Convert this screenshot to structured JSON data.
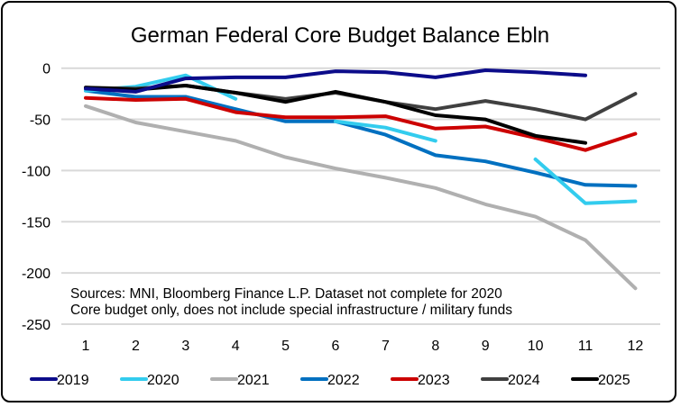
{
  "chart_data": {
    "type": "line",
    "title": "German Federal Core Budget Balance Ebln",
    "xlabel": "",
    "ylabel": "",
    "x": [
      1,
      2,
      3,
      4,
      5,
      6,
      7,
      8,
      9,
      10,
      11,
      12
    ],
    "ylim": [
      -250,
      0
    ],
    "yticks": [
      0,
      -50,
      -100,
      -150,
      -200,
      -250
    ],
    "grid": true,
    "legend_position": "bottom",
    "annotations": [
      "Sources: MNI, Bloomberg Finance L.P. Dataset not complete for 2020",
      "Core budget only, does not include special infrastructure / military funds"
    ],
    "series": [
      {
        "name": "2021",
        "color": "#b0b0b0",
        "values": [
          -37,
          -53,
          -62,
          -71,
          -87,
          -98,
          -107,
          -117,
          -133,
          -145,
          -168,
          -215
        ]
      },
      {
        "name": "2022",
        "color": "#0070c0",
        "values": [
          -22,
          -28,
          -28,
          -40,
          -52,
          -52,
          -65,
          -85,
          -91,
          -102,
          -114,
          -115
        ]
      },
      {
        "name": "2020",
        "color": "#33ccee",
        "values": [
          -22,
          -18,
          -7,
          -30,
          null,
          -52,
          -58,
          -71,
          null,
          -89,
          -132,
          -130
        ]
      },
      {
        "name": "2023",
        "color": "#cc0000",
        "values": [
          -29,
          -31,
          -30,
          -43,
          -48,
          -48,
          -47,
          -59,
          -57,
          -68,
          -80,
          -64
        ]
      },
      {
        "name": "2024",
        "color": "#404040",
        "values": [
          -19,
          -20,
          -17,
          -24,
          -30,
          -24,
          -33,
          -40,
          -32,
          -40,
          -50,
          -25
        ]
      },
      {
        "name": "2025",
        "color": "#000000",
        "values": [
          -19,
          -21,
          -17,
          -24,
          -33,
          -23,
          -33,
          -46,
          -50,
          -66,
          -73,
          null
        ]
      },
      {
        "name": "2019",
        "color": "#0c0c8a",
        "values": [
          -20,
          -23,
          -10,
          -9,
          -9,
          -3,
          -4,
          -9,
          -2,
          -4,
          -7,
          null
        ]
      }
    ],
    "legend_order": [
      "2019",
      "2020",
      "2021",
      "2022",
      "2023",
      "2024",
      "2025"
    ]
  }
}
